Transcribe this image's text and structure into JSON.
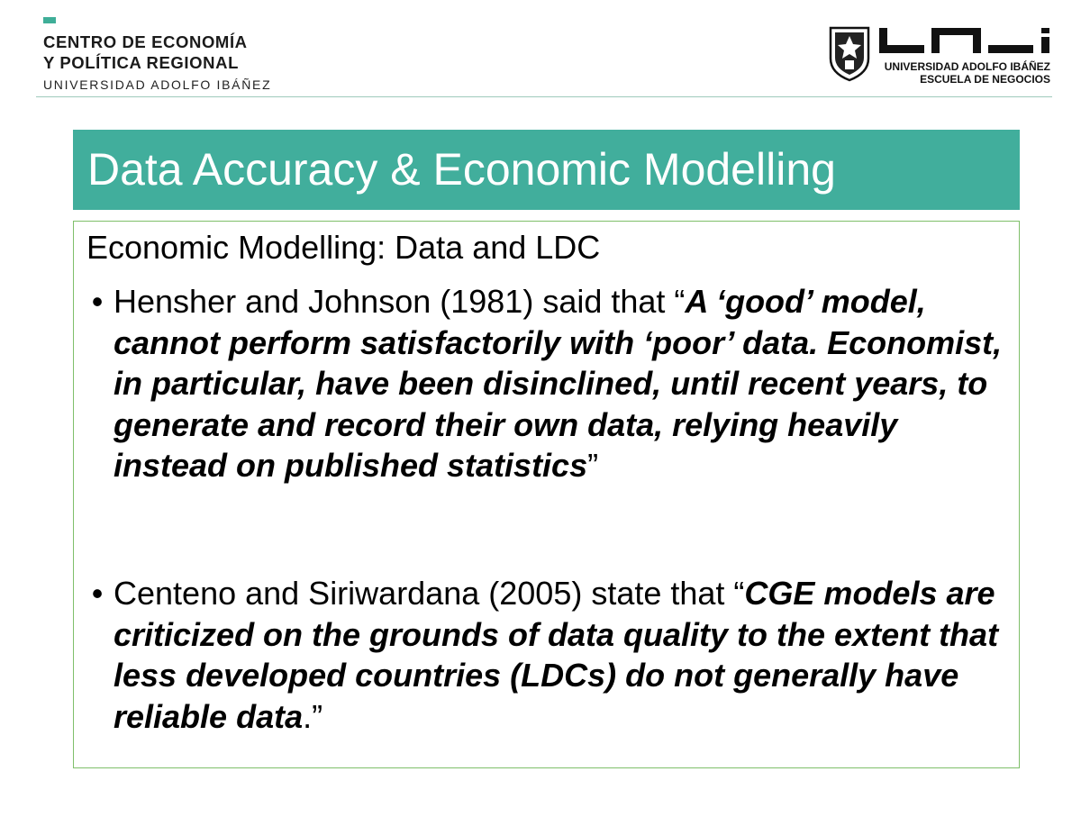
{
  "header": {
    "left_line1": "CENTRO DE ECONOMÍA",
    "left_line2": "Y POLÍTICA REGIONAL",
    "left_line3": "UNIVERSIDAD ADOLFO IBÁÑEZ",
    "logo_line1": "UNIVERSIDAD ADOLFO IBÁÑEZ",
    "logo_line2": "ESCUELA DE NEGOCIOS",
    "accent_color": "#41ae9c"
  },
  "slide": {
    "title": "Data Accuracy & Economic Modelling",
    "subtitle": "Economic Modelling: Data and LDC",
    "bullets": [
      {
        "lead": "Hensher and Johnson (1981) said that “",
        "quote": "A ‘good’ model, cannot perform satisfactorily with ‘poor’ data. Economist, in particular, have been disinclined, until recent years, to generate and record their own data, relying heavily instead on published statistics",
        "tail": "”"
      },
      {
        "lead": "Centeno and Siriwardana (2005) state that “",
        "quote": "CGE models are criticized on the grounds of data quality to the extent that less developed countries (LDCs) do not generally have reliable data",
        "tail": ".”"
      }
    ]
  }
}
